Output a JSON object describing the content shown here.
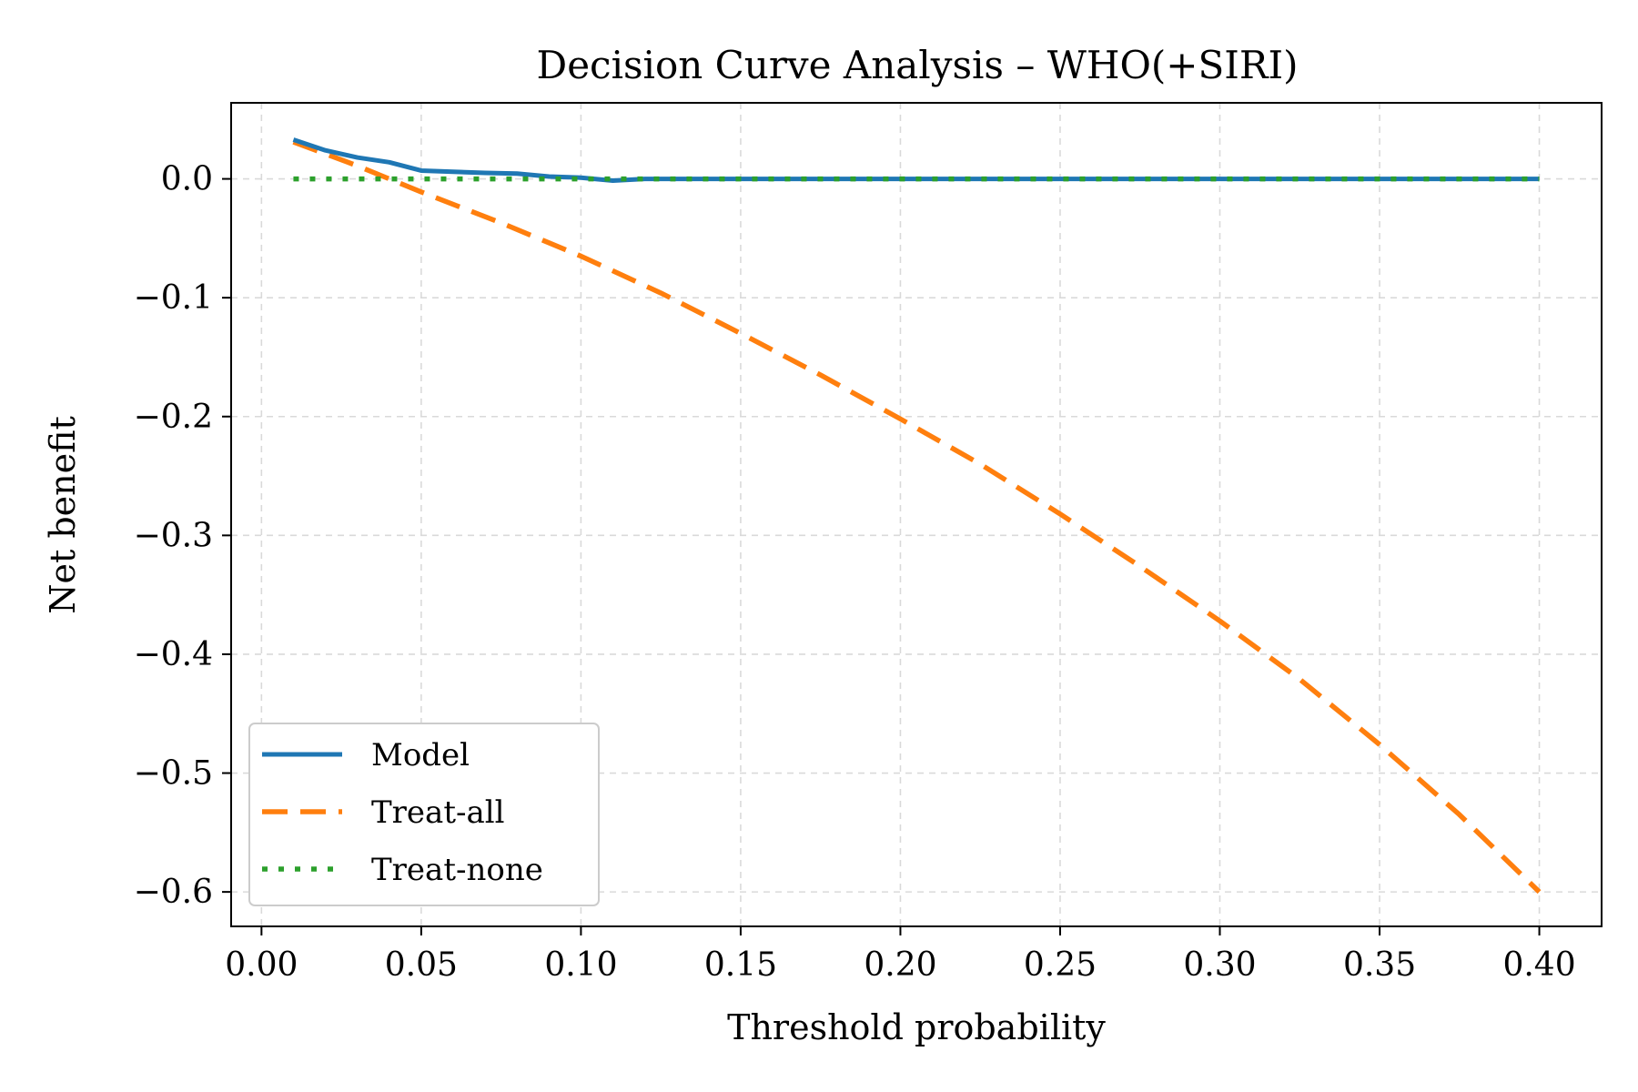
{
  "chart_data": {
    "type": "line",
    "title": "Decision Curve Analysis – WHO(+SIRI)",
    "xlabel": "Threshold probability",
    "ylabel": "Net benefit",
    "xlim": [
      -0.0095,
      0.4195
    ],
    "ylim": [
      -0.629,
      0.064
    ],
    "xticks": [
      0.0,
      0.05,
      0.1,
      0.15,
      0.2,
      0.25,
      0.3,
      0.35,
      0.4
    ],
    "xtick_labels": [
      "0.00",
      "0.05",
      "0.10",
      "0.15",
      "0.20",
      "0.25",
      "0.30",
      "0.35",
      "0.40"
    ],
    "yticks": [
      0.0,
      -0.1,
      -0.2,
      -0.3,
      -0.4,
      -0.5,
      -0.6
    ],
    "ytick_labels": [
      "0.0",
      "−0.1",
      "−0.2",
      "−0.3",
      "−0.4",
      "−0.5",
      "−0.6"
    ],
    "grid": true,
    "legend_position": "lower-left",
    "series": [
      {
        "name": "Model",
        "color": "#1f77b4",
        "style": "solid",
        "x": [
          0.01,
          0.02,
          0.03,
          0.04,
          0.05,
          0.06,
          0.07,
          0.08,
          0.09,
          0.1,
          0.11,
          0.12,
          0.13,
          0.14,
          0.15,
          0.2,
          0.25,
          0.3,
          0.35,
          0.4
        ],
        "y": [
          0.033,
          0.024,
          0.018,
          0.014,
          0.007,
          0.006,
          0.005,
          0.0045,
          0.002,
          0.001,
          -0.0015,
          0.0,
          0.0,
          0.0,
          0.0,
          0.0,
          0.0,
          0.0,
          0.0,
          0.0
        ]
      },
      {
        "name": "Treat-all",
        "color": "#ff7f0e",
        "style": "dashed",
        "x": [
          0.01,
          0.02,
          0.03,
          0.04,
          0.05,
          0.075,
          0.1,
          0.125,
          0.15,
          0.175,
          0.2,
          0.225,
          0.25,
          0.275,
          0.3,
          0.325,
          0.35,
          0.375,
          0.4
        ],
        "y": [
          0.031,
          0.021,
          0.011,
          0.0,
          -0.011,
          -0.037,
          -0.065,
          -0.096,
          -0.13,
          -0.165,
          -0.202,
          -0.24,
          -0.282,
          -0.326,
          -0.372,
          -0.421,
          -0.476,
          -0.535,
          -0.6
        ]
      },
      {
        "name": "Treat-none",
        "color": "#2ca02c",
        "style": "dotted",
        "x": [
          0.01,
          0.4
        ],
        "y": [
          0.0,
          0.0
        ]
      }
    ]
  }
}
